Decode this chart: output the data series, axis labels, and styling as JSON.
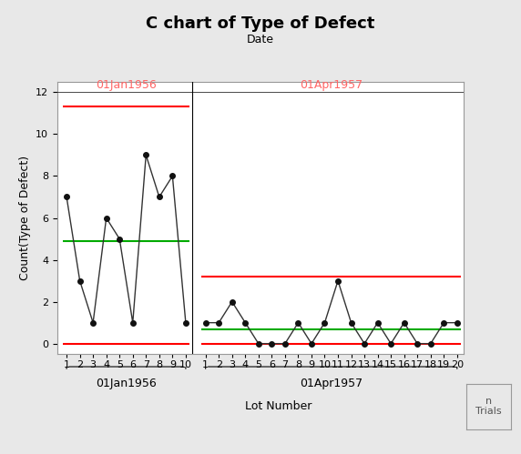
{
  "title": "C chart of Type of Defect",
  "subtitle": "Date",
  "ylabel": "Count(Type of Defect)",
  "xlabel": "Lot Number",
  "phase1_label": "01Jan1956",
  "phase2_label": "01Apr1957",
  "phase1_lots": [
    1,
    2,
    3,
    4,
    5,
    6,
    7,
    8,
    9,
    10
  ],
  "phase1_values": [
    7,
    3,
    1,
    6,
    5,
    1,
    9,
    7,
    8,
    1
  ],
  "phase2_lots": [
    1,
    2,
    3,
    4,
    5,
    6,
    7,
    8,
    9,
    10,
    11,
    12,
    13,
    14,
    15,
    16,
    17,
    18,
    19,
    20
  ],
  "phase2_values": [
    1,
    1,
    2,
    1,
    0,
    0,
    0,
    1,
    0,
    1,
    3,
    1,
    0,
    1,
    0,
    1,
    0,
    0,
    1,
    1
  ],
  "phase1_ucl": 11.3,
  "phase1_cl": 4.9,
  "phase1_lcl": 0.0,
  "phase2_ucl": 3.2,
  "phase2_cl": 0.7,
  "phase2_lcl": 0.0,
  "ucl_color": "#FF0000",
  "cl_color": "#00AA00",
  "lcl_color": "#FF0000",
  "line_color": "#333333",
  "point_color": "#111111",
  "phase_top_label_color": "#FF6666",
  "phase_bottom_label_color": "#000000",
  "background_color": "#E8E8E8",
  "plot_bg_color": "#FFFFFF",
  "ylim": [
    -0.5,
    12.5
  ],
  "yticks": [
    0,
    2,
    4,
    6,
    8,
    10,
    12
  ],
  "title_fontsize": 13,
  "subtitle_fontsize": 9,
  "label_fontsize": 9,
  "tick_fontsize": 8,
  "phase_label_fontsize": 9,
  "n_trials_text": "n\nTrials"
}
